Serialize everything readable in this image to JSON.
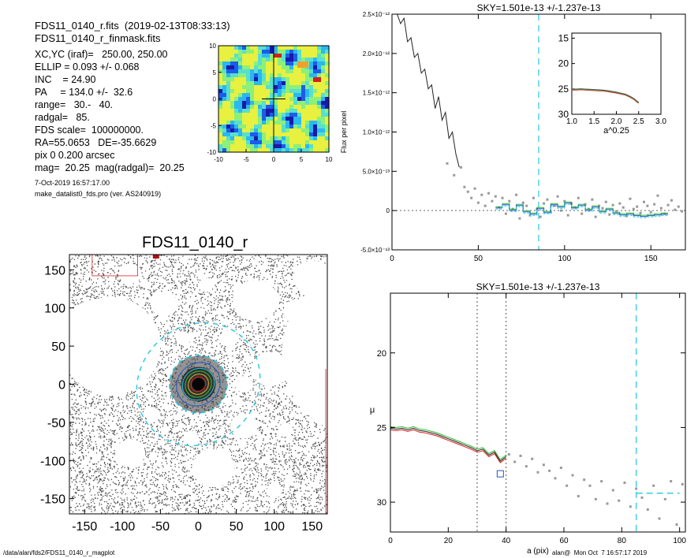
{
  "header": {
    "line1": "FDS11_0140_r.fits  (2019-02-13T08:33:13)",
    "line2": "FDS11_0140_r_finmask.fits"
  },
  "info": [
    "XC,YC (iraf)=   250.00, 250.00",
    "ELLIP = 0.093 +/- 0.068",
    "INC    = 24.90",
    "PA     = 134.0 +/-  32.6",
    "range=   30.-   40.",
    "radgal=   85.",
    "FDS scale=  100000000.",
    "RA=55.0653   DE=-35.6629",
    "pix 0 0.200 arcsec",
    "mag=  20.25  mag(radgal)=  20.25"
  ],
  "date_line": "7-Oct-2019 16:57:17.00",
  "prog_line": "make_datalist0_fds.pro (ver. AS240919)",
  "footer_left": "/data/alan/fds2/FDS11_0140_r_magplot",
  "footer_right": "alan@  Mon Oct  7 16:57:17 2019",
  "colors": {
    "cyan": "#22c8e0",
    "green": "#33bb33",
    "red": "#dd2222",
    "blue": "#2255cc",
    "gray": "#999999"
  },
  "chart_data": [
    {
      "id": "mini_map",
      "type": "heatmap",
      "xlim": [
        -10,
        10
      ],
      "ylim": [
        -10,
        10
      ],
      "xticks": [
        -10,
        -5,
        0,
        5,
        10
      ],
      "yticks": [
        -10,
        -5,
        0,
        5,
        10
      ],
      "xtick_labels": [
        "-10",
        "-5",
        "0",
        "5",
        "10"
      ],
      "ytick_labels": [
        "-10",
        "-5",
        "0",
        "5",
        "10"
      ],
      "colormap": [
        "#1a1aa6",
        "#1c5ce8",
        "#2ab8f0",
        "#56e0d0",
        "#8cf07a",
        "#e8f040",
        "#f0a030",
        "#d02020"
      ]
    },
    {
      "id": "image",
      "type": "image",
      "title": "FDS11_0140_r",
      "xlim": [
        -170,
        170
      ],
      "ylim": [
        -170,
        170
      ],
      "xticks": [
        -150,
        -100,
        -50,
        0,
        50,
        100,
        150
      ],
      "yticks": [
        -150,
        -100,
        -50,
        0,
        50,
        100,
        150
      ],
      "xtick_labels": [
        "-150",
        "-100",
        "-50",
        "0",
        "50",
        "100",
        "150"
      ],
      "ytick_labels": [
        "-150",
        "-100",
        "-50",
        "0",
        "50",
        "100",
        "150"
      ],
      "ellipse_semi_major": 85,
      "ellipse_ellipticity": 0.093,
      "ellipse_pa_deg": 134.0,
      "masks": [
        {
          "x": -135,
          "y": 70,
          "r": 45
        },
        {
          "x": -45,
          "y": 105,
          "r": 18
        },
        {
          "x": -90,
          "y": 145,
          "r": 15
        },
        {
          "x": 75,
          "y": 110,
          "r": 30
        },
        {
          "x": 130,
          "y": 95,
          "r": 18
        },
        {
          "x": 150,
          "y": 140,
          "r": 25
        },
        {
          "x": 95,
          "y": 20,
          "r": 25
        },
        {
          "x": 60,
          "y": 0,
          "r": 12
        },
        {
          "x": 60,
          "y": -55,
          "r": 18
        },
        {
          "x": -90,
          "y": -90,
          "r": 20
        },
        {
          "x": 20,
          "y": -110,
          "r": 28
        },
        {
          "x": -10,
          "y": -70,
          "r": 10
        },
        {
          "x": 115,
          "y": -60,
          "r": 10
        },
        {
          "x": 130,
          "y": 40,
          "r": 15
        },
        {
          "x": 40,
          "y": 60,
          "r": 12
        },
        {
          "x": -20,
          "y": 60,
          "r": 10
        },
        {
          "x": 140,
          "y": -20,
          "r": 12
        },
        {
          "x": -60,
          "y": -40,
          "r": 10
        },
        {
          "x": 10,
          "y": 130,
          "r": 10
        },
        {
          "x": 100,
          "y": -140,
          "r": 10
        }
      ],
      "large_mask": {
        "x": -115,
        "y": 50,
        "r": 65
      },
      "right_mask": {
        "x": 220,
        "y": 40,
        "r": 110
      }
    },
    {
      "id": "sky_profile",
      "type": "line",
      "title": "SKY=1.501e-13 +/-1.237e-13",
      "ylabel": "Flux per pixel",
      "xlim": [
        0,
        170
      ],
      "ylim": [
        -5e-13,
        2.5e-12
      ],
      "xticks": [
        0,
        50,
        100,
        150
      ],
      "xtick_labels": [
        "0",
        "50",
        "100",
        "150"
      ],
      "yticks": [
        -5e-13,
        0,
        5e-13,
        1e-12,
        1.5e-12,
        2e-12,
        2.5e-12
      ],
      "ytick_labels": [
        "-5.0×10⁻¹³",
        "0",
        "5.0×10⁻¹³",
        "1.0×10⁻¹²",
        "1.5×10⁻¹²",
        "2.0×10⁻¹²",
        "2.5×10⁻¹²"
      ],
      "radgal_line": 85,
      "profile": {
        "x": [
          3,
          5,
          7,
          9,
          11,
          13,
          15,
          17,
          19,
          21,
          23,
          25,
          27,
          29,
          31,
          33,
          35,
          37,
          39
        ],
        "y": [
          2.5e-12,
          2.38e-12,
          2.45e-12,
          2.15e-12,
          2.2e-12,
          1.95e-12,
          2e-12,
          1.75e-12,
          1.8e-12,
          1.55e-12,
          1.6e-12,
          1.3e-12,
          1.45e-12,
          1.15e-12,
          1.25e-12,
          9.2e-13,
          1e-12,
          7.2e-13,
          5.5e-13
        ]
      },
      "scatter": {
        "x": [
          32,
          36,
          40,
          42,
          44,
          46,
          48,
          50,
          52,
          54,
          56,
          58,
          60,
          62,
          64,
          66,
          68,
          70,
          72,
          74,
          76,
          78,
          80,
          82,
          84,
          86,
          88,
          90,
          92,
          94,
          96,
          98,
          100,
          102,
          104,
          106,
          108,
          110,
          112,
          114,
          116,
          118,
          120,
          122,
          124,
          126,
          128,
          130,
          132,
          134,
          136,
          138,
          140,
          142,
          144,
          146,
          148,
          150,
          152,
          154,
          156,
          158,
          160,
          162,
          164,
          166,
          168
        ],
        "y": [
          6e-13,
          4.5e-13,
          5.5e-13,
          3e-13,
          2.4e-13,
          1.6e-13,
          2.8e-13,
          1e-13,
          2e-13,
          6e-14,
          2.2e-13,
          1.2e-13,
          1.8e-13,
          4e-14,
          1.6e-13,
          -4e-14,
          1.2e-13,
          2e-14,
          2e-13,
          -1e-13,
          1e-13,
          6e-14,
          -6e-14,
          1.6e-13,
          2e-14,
          -8e-14,
          9e-14,
          1.4e-13,
          -2e-14,
          6e-14,
          1.8e-13,
          0.0,
          1.2e-13,
          -6e-14,
          9e-14,
          4e-14,
          1.6e-13,
          -4e-14,
          8e-14,
          2e-14,
          1.4e-13,
          -8e-14,
          6e-14,
          3e-14,
          1.1e-13,
          -5e-14,
          7e-14,
          -1e-14,
          9e-14,
          4e-14,
          -7e-14,
          1.5e-13,
          2e-14,
          5e-14,
          -3e-14,
          1.1e-13,
          6e-14,
          -2e-14,
          8e-14,
          1.9e-13,
          3e-14,
          -4e-14,
          7e-14,
          1.3e-13,
          1e-14,
          5e-14,
          -1e-14
        ]
      },
      "step": {
        "x": [
          60,
          64,
          68,
          72,
          76,
          80,
          84,
          88,
          92,
          96,
          100,
          104,
          108,
          112,
          116,
          120,
          124,
          128,
          132,
          136,
          140,
          144,
          148,
          152,
          156
        ],
        "y": [
          5e-14,
          9e-14,
          2e-14,
          8e-14,
          0.0,
          -3e-14,
          4e-14,
          -1e-14,
          9e-14,
          6e-14,
          1.1e-13,
          5e-14,
          8e-14,
          2e-14,
          6e-14,
          0.0,
          3e-14,
          -2e-14,
          -4e-14,
          -3e-14,
          -5e-14,
          -6e-14,
          -5e-14,
          -4e-14,
          -3e-14
        ]
      },
      "inset": {
        "xlabel": "a^0.25",
        "xlim": [
          1.0,
          3.0
        ],
        "ylim": [
          30,
          14
        ],
        "xticks": [
          1.0,
          1.5,
          2.0,
          2.5,
          3.0
        ],
        "xtick_labels": [
          "1.0",
          "1.5",
          "2.0",
          "2.5",
          "3.0"
        ],
        "yticks": [
          15,
          20,
          25,
          30
        ],
        "ytick_labels": [
          "15",
          "20",
          "25",
          "30"
        ],
        "x": [
          1.0,
          1.1,
          1.2,
          1.3,
          1.4,
          1.5,
          1.6,
          1.7,
          1.8,
          1.9,
          2.0,
          2.1,
          2.2,
          2.3,
          2.4,
          2.45,
          2.5
        ],
        "y": [
          25.1,
          25.1,
          25.05,
          25.1,
          25.15,
          25.2,
          25.25,
          25.3,
          25.4,
          25.55,
          25.7,
          25.9,
          26.1,
          26.5,
          27.0,
          27.4,
          27.7
        ]
      }
    },
    {
      "id": "surface_brightness",
      "type": "line",
      "title": "SKY=1.501e-13 +/-1.237e-13",
      "xlabel": "a (pix)",
      "ylabel": "μ",
      "xlim": [
        0,
        102
      ],
      "ylim": [
        32,
        16
      ],
      "xticks": [
        0,
        20,
        40,
        60,
        80,
        100
      ],
      "xtick_labels": [
        "0",
        "20",
        "40",
        "60",
        "80",
        "100"
      ],
      "yticks": [
        20,
        25,
        30
      ],
      "ytick_labels": [
        "20",
        "25",
        "30"
      ],
      "range_lines": [
        30,
        40
      ],
      "radgal_line": 85,
      "sky_level": 29.4,
      "profile_x": [
        0,
        2,
        4,
        6,
        8,
        10,
        12,
        14,
        16,
        18,
        20,
        22,
        24,
        26,
        28,
        30,
        32,
        34,
        36,
        38,
        40
      ],
      "profile_y": [
        25.0,
        25.05,
        25.0,
        25.1,
        25.0,
        25.15,
        25.2,
        25.3,
        25.4,
        25.55,
        25.7,
        25.85,
        26.0,
        26.15,
        26.3,
        26.5,
        26.4,
        26.8,
        26.6,
        27.2,
        26.9
      ],
      "marker": {
        "x": 38,
        "y": 28.1
      },
      "scatter": {
        "x": [
          41,
          43,
          45,
          47,
          49,
          51,
          53,
          55,
          57,
          59,
          61,
          63,
          65,
          67,
          69,
          71,
          73,
          75,
          77,
          79,
          81,
          83,
          85,
          87,
          89,
          91,
          93,
          95,
          97,
          99,
          101
        ],
        "y": [
          26.8,
          27.3,
          26.9,
          27.6,
          27.1,
          28.0,
          27.5,
          27.9,
          28.4,
          27.7,
          28.9,
          28.2,
          29.6,
          28.5,
          28.9,
          29.8,
          28.6,
          30.1,
          29.2,
          29.9,
          28.7,
          30.3,
          29.1,
          29.7,
          30.5,
          28.9,
          31.1,
          29.8,
          28.6,
          31.5,
          28.8
        ]
      }
    }
  ]
}
